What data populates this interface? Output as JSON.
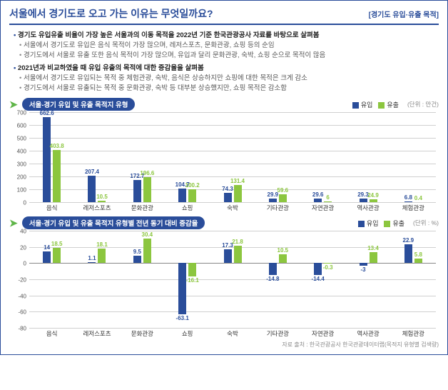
{
  "header": {
    "title": "서울에서 경기도로 오고 가는 이유는 무엇일까요?",
    "subtitle": "[경기도 유입·유출 목적]"
  },
  "bullets": [
    {
      "l": 1,
      "t": "경기도 유입유출 비율이 가장 높은 서울과의 이동 목적을 2022년 기준 한국관광공사 자료를 바탕으로 살펴봄"
    },
    {
      "l": 2,
      "t": "서울에서 경기도로 유입은 음식 목적이 가장 많으며, 레저스포츠, 문화관광, 쇼핑 등의 순임"
    },
    {
      "l": 2,
      "t": "경기도에서 서울로 유출 또한 음식 목적이 가장 많으며, 유입과 달리 문화관광, 숙박, 쇼핑 순으로 목적이 많음"
    },
    {
      "l": 1,
      "t": "2021년과 비교하였을 때 유입 유출의 목적에 대한 증감율을 살펴봄"
    },
    {
      "l": 2,
      "t": "서울에서 경기도로 유입되는 목적 중 체험관광, 숙박, 음식은 상승하지만 쇼핑에 대한 목적은 크게 감소"
    },
    {
      "l": 2,
      "t": "경기도에서 서울로 유출되는 목적 중 문화관광, 숙박 등 대부분 상승했지만, 쇼핑 목적은 감소함"
    }
  ],
  "legend": {
    "in": "유입",
    "out": "유출"
  },
  "colors": {
    "in": "#2a4d9a",
    "out": "#8cc63f",
    "grid": "#d0d0d0",
    "txt": "#333"
  },
  "chart1": {
    "title": "서울-경기 유입 및 유출 목적지 유형",
    "unit": "(단위 : 만건)",
    "ymin": 0,
    "ymax": 700,
    "ystep": 100,
    "cats": [
      "음식",
      "레저스포츠",
      "문화관광",
      "쇼핑",
      "숙박",
      "기타관광",
      "자연관광",
      "역사관광",
      "체험관광"
    ],
    "in": [
      662.6,
      207.4,
      172.7,
      104.7,
      74.3,
      29.9,
      29.6,
      29.3,
      6.8
    ],
    "out": [
      403.8,
      10.5,
      196.6,
      100.2,
      131.4,
      59.6,
      6.0,
      24.9,
      0.4
    ]
  },
  "chart2": {
    "title": "서울-경기 유입 및 유출 목적지 유형별 전년 동기 대비 증감율",
    "unit": "(단위 : %)",
    "ymin": -80,
    "ymax": 40,
    "ystep": 20,
    "cats": [
      "음식",
      "레저스포츠",
      "문화관광",
      "쇼핑",
      "숙박",
      "기타관광",
      "자연관광",
      "역사관광",
      "체험관광"
    ],
    "in": [
      14.0,
      1.1,
      9.5,
      -63.1,
      17.3,
      -14.8,
      -14.4,
      -3.0,
      22.9
    ],
    "out": [
      18.5,
      18.1,
      30.4,
      -16.1,
      21.8,
      10.5,
      -0.3,
      13.4,
      5.8
    ]
  },
  "source": "자료 출처 : 한국관광공사 한국관광데이터랩(목적지 유형별 검색량)"
}
